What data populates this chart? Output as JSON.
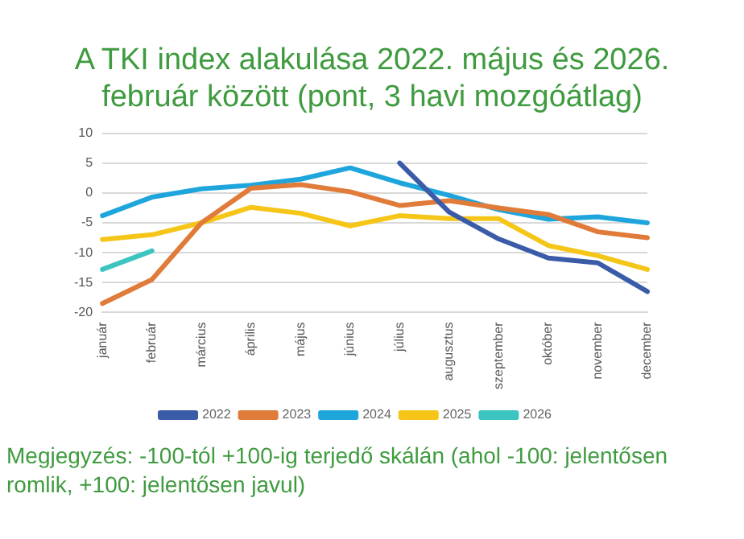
{
  "chart_data": {
    "type": "line",
    "title": "A TKI index alakulása 2022. május és 2026. február között (pont, 3 havi mozgóátlag)",
    "categories": [
      "január",
      "február",
      "március",
      "április",
      "május",
      "június",
      "július",
      "augusztus",
      "szeptember",
      "október",
      "november",
      "december"
    ],
    "series": [
      {
        "name": "2022",
        "color": "#3a5ba8",
        "values": [
          null,
          null,
          null,
          null,
          null,
          null,
          5,
          -3.2,
          -7.7,
          -10.9,
          -11.7,
          -16.5
        ]
      },
      {
        "name": "2023",
        "color": "#e07b39",
        "values": [
          -18.5,
          -14.5,
          -5,
          0.8,
          1.4,
          0.2,
          -2.1,
          -1.3,
          -2.5,
          -3.6,
          -6.5,
          -7.5
        ]
      },
      {
        "name": "2024",
        "color": "#1ea5dc",
        "values": [
          -3.8,
          -0.7,
          0.7,
          1.3,
          2.3,
          4.2,
          1.7,
          -0.4,
          -2.8,
          -4.4,
          -4,
          -5
        ]
      },
      {
        "name": "2025",
        "color": "#f5c518",
        "values": [
          -7.8,
          -7,
          -5,
          -2.4,
          -3.4,
          -5.5,
          -3.8,
          -4.3,
          -4.3,
          -8.8,
          -10.5,
          -12.8
        ]
      },
      {
        "name": "2026",
        "color": "#3cc4c0",
        "values": [
          -12.8,
          -9.7,
          null,
          null,
          null,
          null,
          null,
          null,
          null,
          null,
          null,
          null
        ]
      }
    ],
    "ylim": [
      -20,
      10
    ],
    "yticks": [
      -20,
      -15,
      -10,
      -5,
      0,
      5,
      10
    ],
    "grid": "y",
    "legend": "bottom",
    "marker": "none",
    "line_style": "solid",
    "annotations": [
      "Megjegyzés: -100-tól +100-ig terjedő skálán (ahol -100: jelentősen romlik, +100: jelentősen javul)"
    ]
  }
}
